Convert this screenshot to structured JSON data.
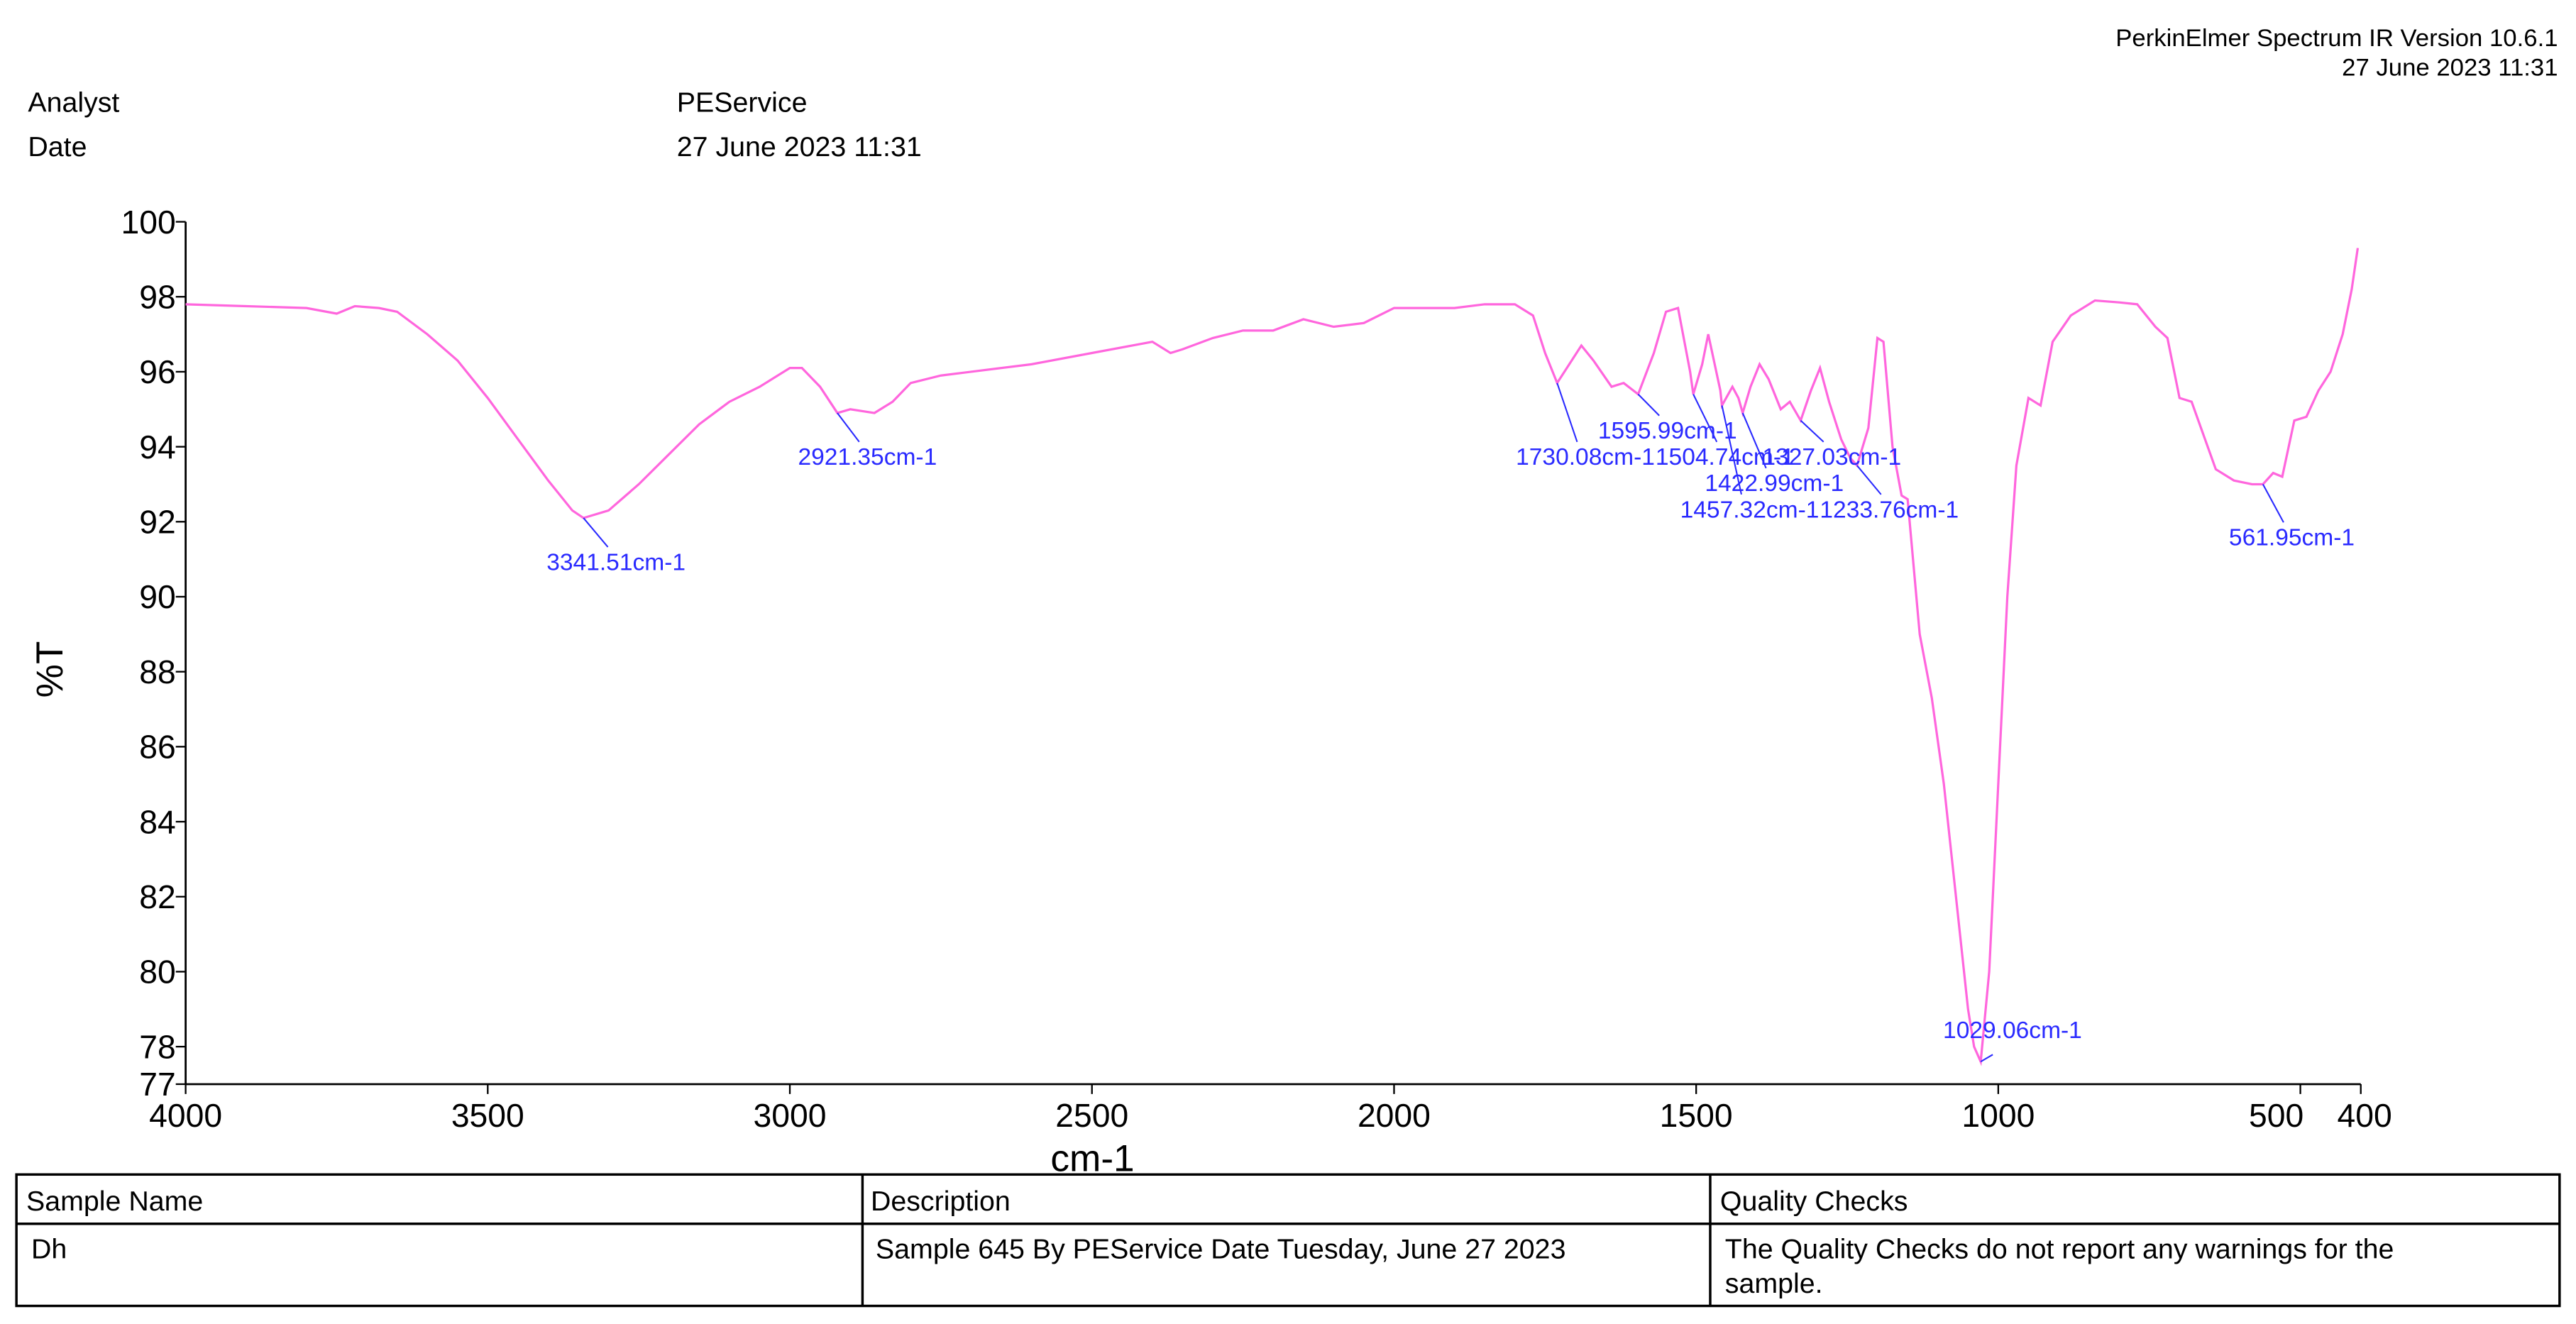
{
  "header": {
    "software": "PerkinElmer Spectrum IR Version 10.6.1",
    "report_date": "27 June 2023 11:31",
    "analyst_label": "Analyst",
    "analyst": "PEService",
    "date_label": "Date",
    "date": "27 June 2023 11:31"
  },
  "chart_data": {
    "type": "line",
    "x_label": "cm-1",
    "y_label": "%T",
    "color": "#ff66dd",
    "xlim": [
      4000,
      400
    ],
    "ylim": [
      77,
      100
    ],
    "xticks": [
      4000,
      3500,
      3000,
      2500,
      2000,
      1500,
      1000,
      500,
      400
    ],
    "yticks": [
      77,
      78,
      80,
      82,
      84,
      86,
      88,
      90,
      92,
      94,
      96,
      98,
      100
    ],
    "x": [
      4000,
      3900,
      3800,
      3750,
      3720,
      3680,
      3650,
      3600,
      3550,
      3500,
      3450,
      3400,
      3360,
      3341.51,
      3300,
      3250,
      3200,
      3150,
      3100,
      3050,
      3000,
      2980,
      2950,
      2921.35,
      2900,
      2860,
      2830,
      2800,
      2750,
      2700,
      2600,
      2500,
      2400,
      2370,
      2350,
      2300,
      2250,
      2200,
      2150,
      2100,
      2050,
      2000,
      1950,
      1900,
      1850,
      1800,
      1770,
      1750,
      1730.08,
      1710,
      1690,
      1670,
      1640,
      1620,
      1595.99,
      1570,
      1550,
      1530,
      1510,
      1504.74,
      1490,
      1480,
      1460,
      1457.32,
      1440,
      1430,
      1422.99,
      1410,
      1395,
      1380,
      1360,
      1345,
      1327.03,
      1310,
      1295,
      1280,
      1260,
      1245,
      1233.76,
      1215,
      1200,
      1190,
      1175,
      1160,
      1150,
      1130,
      1110,
      1090,
      1070,
      1050,
      1040,
      1029.06,
      1015,
      1000,
      985,
      970,
      950,
      930,
      910,
      880,
      840,
      800,
      770,
      740,
      720,
      700,
      680,
      660,
      640,
      610,
      580,
      561.95,
      545,
      530,
      510,
      490,
      470,
      450,
      430,
      415,
      405
    ],
    "values": [
      97.8,
      97.75,
      97.7,
      97.55,
      97.75,
      97.7,
      97.6,
      97.0,
      96.3,
      95.3,
      94.2,
      93.1,
      92.3,
      92.1,
      92.3,
      93.0,
      93.8,
      94.6,
      95.2,
      95.6,
      96.1,
      96.1,
      95.6,
      94.9,
      95.0,
      94.9,
      95.2,
      95.7,
      95.9,
      96.0,
      96.2,
      96.5,
      96.8,
      96.5,
      96.6,
      96.9,
      97.1,
      97.1,
      97.4,
      97.2,
      97.3,
      97.7,
      97.7,
      97.7,
      97.8,
      97.8,
      97.5,
      96.5,
      95.7,
      96.2,
      96.7,
      96.3,
      95.6,
      95.7,
      95.4,
      96.5,
      97.6,
      97.7,
      96.0,
      95.4,
      96.2,
      97.0,
      95.5,
      95.1,
      95.6,
      95.3,
      94.9,
      95.6,
      96.2,
      95.8,
      95.0,
      95.2,
      94.7,
      95.5,
      96.1,
      95.2,
      94.2,
      93.7,
      93.5,
      94.5,
      96.9,
      96.8,
      94.0,
      92.7,
      92.6,
      89.0,
      87.3,
      85.0,
      82.0,
      79.0,
      78.0,
      77.6,
      80.0,
      85.0,
      90.0,
      93.5,
      95.3,
      95.1,
      96.8,
      97.5,
      97.9,
      97.85,
      97.8,
      97.2,
      96.9,
      95.3,
      95.2,
      94.3,
      93.4,
      93.1,
      93.0,
      93.0,
      93.3,
      93.2,
      94.7,
      94.8,
      95.5,
      96.0,
      97.0,
      98.2,
      99.3
    ],
    "annotations": [
      {
        "label": "3341.51cm-1",
        "x": 3341.51,
        "y": 92.1
      },
      {
        "label": "2921.35cm-1",
        "x": 2921.35,
        "y": 94.9
      },
      {
        "label": "1730.08cm-1",
        "x": 1730.08,
        "y": 95.7
      },
      {
        "label": "1595.99cm-1",
        "x": 1595.99,
        "y": 95.4
      },
      {
        "label": "1504.74cm-1",
        "x": 1504.74,
        "y": 95.4
      },
      {
        "label": "1457.32cm-1",
        "x": 1457.32,
        "y": 95.1
      },
      {
        "label": "1422.99cm-1",
        "x": 1422.99,
        "y": 94.9
      },
      {
        "label": "1327.03cm-1",
        "x": 1327.03,
        "y": 94.7
      },
      {
        "label": "1233.76cm-1",
        "x": 1233.76,
        "y": 93.5
      },
      {
        "label": "1029.06cm-1",
        "x": 1029.06,
        "y": 77.6
      },
      {
        "label": "561.95cm-1",
        "x": 561.95,
        "y": 93.0
      }
    ]
  },
  "table": {
    "columns": [
      "Sample Name",
      "Description",
      "Quality Checks"
    ],
    "rows": [
      [
        "Dh",
        "Sample 645 By PEService Date Tuesday, June 27 2023",
        [
          "The Quality Checks do not report any warnings for the",
          "sample."
        ]
      ]
    ]
  }
}
